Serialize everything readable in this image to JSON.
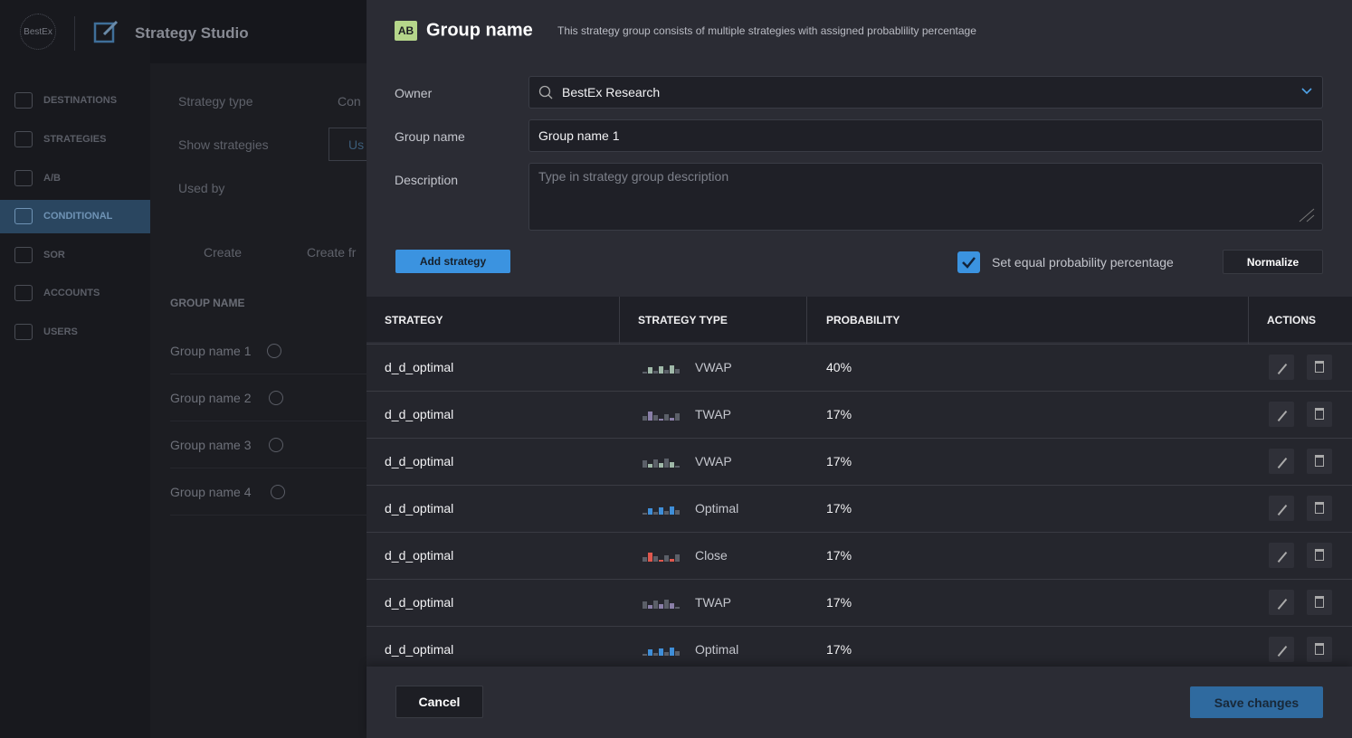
{
  "app": {
    "logo": "BestEx",
    "title": "Strategy Studio",
    "nav": [
      "DESTINATIONS",
      "STRATEGIES",
      "A/B",
      "CONDITIONAL",
      "SOR",
      "ACCOUNTS",
      "USERS"
    ],
    "active_nav": 3
  },
  "background": {
    "filters": [
      {
        "label": "Strategy type",
        "value": "Con"
      },
      {
        "label": "Show strategies",
        "value": "Us"
      },
      {
        "label": "Used by"
      }
    ],
    "actions": [
      "Create",
      "Create fr"
    ],
    "list_header": "GROUP NAME",
    "groups": [
      "Group name 1",
      "Group name 2",
      "Group name 3",
      "Group name 4"
    ]
  },
  "modal": {
    "icon": "AB",
    "title": "Group name",
    "subtitle": "This strategy group consists of multiple strategies with assigned probablility percentage",
    "form": {
      "owner_label": "Owner",
      "owner_value": "BestEx Research",
      "group_label": "Group name",
      "group_value": "Group name 1",
      "description_label": "Description",
      "description_placeholder": "Type in strategy group description"
    },
    "add_button": "Add strategy",
    "equal_checkbox": "Set equal probability percentage",
    "normalize_button": "Normalize",
    "table": {
      "headers": [
        "STRATEGY",
        "STRATEGY TYPE",
        "PROBABILITY",
        "ACTIONS"
      ],
      "rows": [
        [
          "d_d_optimal",
          "VWAP",
          "40%"
        ],
        [
          "d_d_optimal",
          "TWAP",
          "17%"
        ],
        [
          "d_d_optimal",
          "VWAP",
          "17%"
        ],
        [
          "d_d_optimal",
          "Optimal",
          "17%"
        ],
        [
          "d_d_optimal",
          "Close",
          "17%"
        ],
        [
          "d_d_optimal",
          "TWAP",
          "17%"
        ],
        [
          "d_d_optimal",
          "Optimal",
          "17%"
        ]
      ]
    },
    "cancel_button": "Cancel",
    "save_button": "Save changes"
  }
}
